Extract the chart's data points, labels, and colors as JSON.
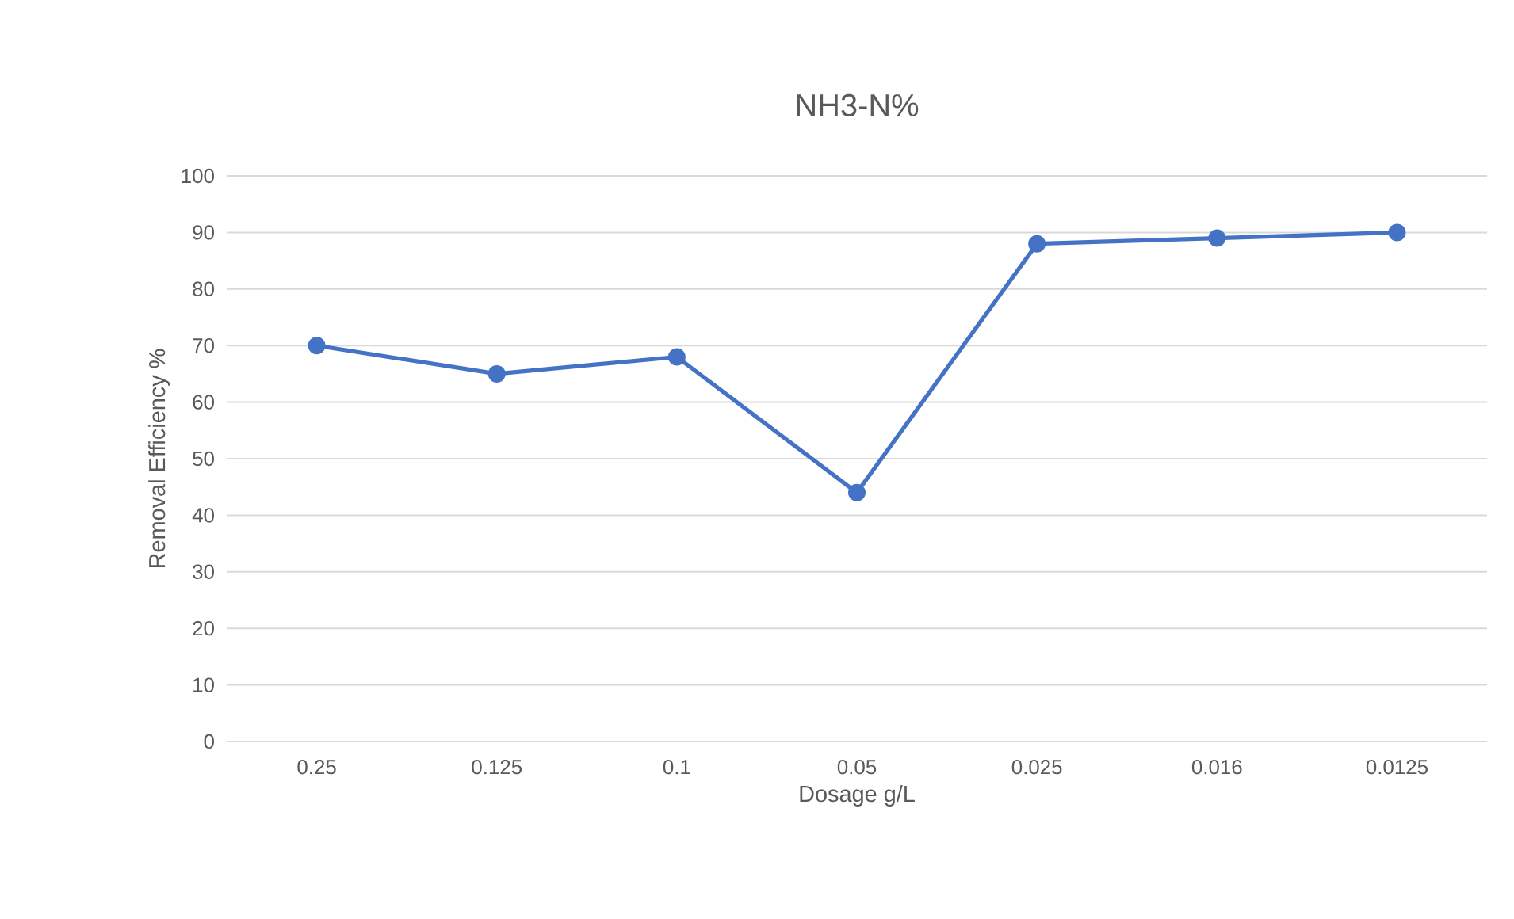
{
  "chart_data": {
    "type": "line",
    "title": "NH3-N%",
    "xlabel": "Dosage g/L",
    "ylabel": "Removal Efficiency %",
    "categories": [
      "0.25",
      "0.125",
      "0.1",
      "0.05",
      "0.025",
      "0.016",
      "0.0125"
    ],
    "values": [
      70,
      65,
      68,
      44,
      88,
      89,
      90
    ],
    "color": "#4472c4",
    "marker": "circle",
    "ylim": [
      0,
      100
    ],
    "yticks": [
      0,
      10,
      20,
      30,
      40,
      50,
      60,
      70,
      80,
      90,
      100
    ],
    "grid": "y"
  }
}
